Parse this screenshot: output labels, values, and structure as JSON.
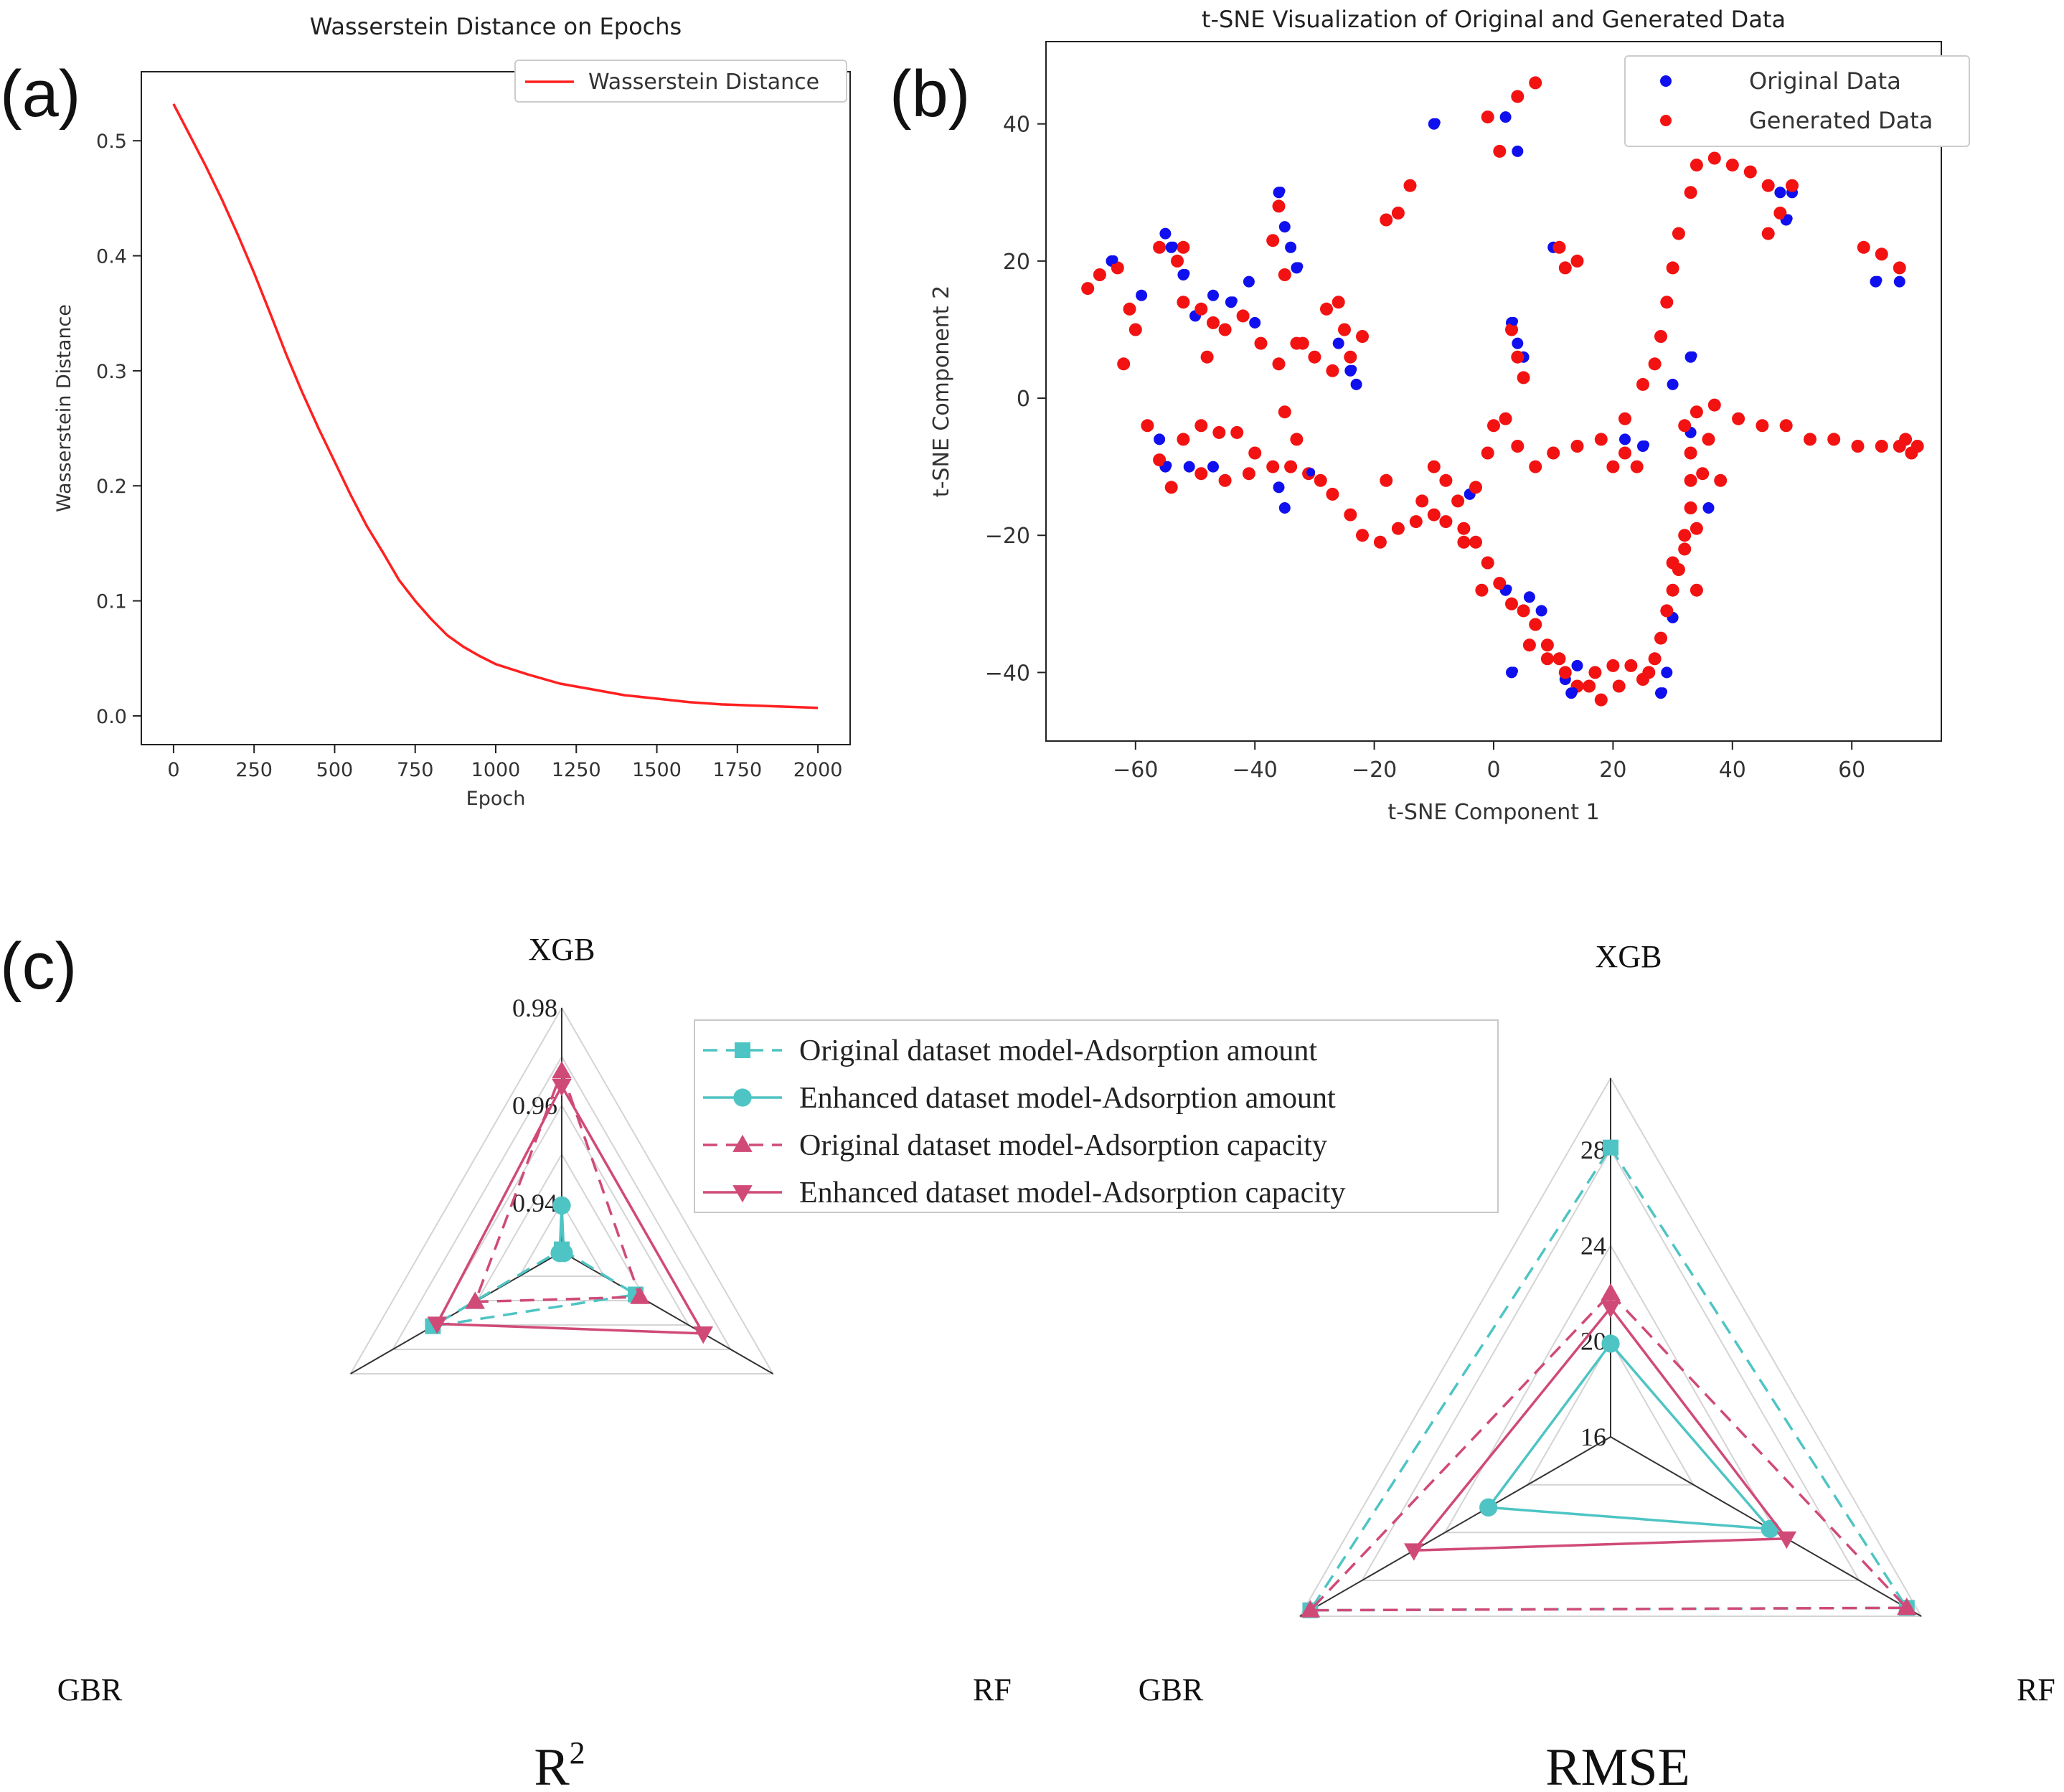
{
  "panels": {
    "a": "(a)",
    "b": "(b)",
    "c": "(c)"
  },
  "chart_data": [
    {
      "id": "a",
      "type": "line",
      "title": "Wasserstein Distance on Epochs",
      "xlabel": "Epoch",
      "ylabel": "Wasserstein Distance",
      "xlim": [
        -100,
        2100
      ],
      "ylim": [
        -0.025,
        0.56
      ],
      "xticks": [
        0,
        250,
        500,
        750,
        1000,
        1250,
        1500,
        1750,
        2000
      ],
      "xtick_labels": [
        "0",
        "250",
        "500",
        "750",
        "1000",
        "1250",
        "1500",
        "1750",
        "2000"
      ],
      "yticks": [
        0.0,
        0.1,
        0.2,
        0.3,
        0.4,
        0.5
      ],
      "ytick_labels": [
        "0.0",
        "0.1",
        "0.2",
        "0.3",
        "0.4",
        "0.5"
      ],
      "legend_position": "top-right",
      "grid": false,
      "series": [
        {
          "name": "Wasserstein Distance",
          "color": "#ff2020",
          "x": [
            0,
            50,
            100,
            150,
            200,
            250,
            300,
            350,
            400,
            450,
            500,
            550,
            600,
            650,
            700,
            750,
            800,
            850,
            900,
            950,
            1000,
            1100,
            1200,
            1300,
            1400,
            1500,
            1600,
            1700,
            1800,
            1900,
            2000
          ],
          "y": [
            0.532,
            0.505,
            0.478,
            0.449,
            0.418,
            0.385,
            0.35,
            0.314,
            0.281,
            0.25,
            0.221,
            0.192,
            0.165,
            0.142,
            0.118,
            0.1,
            0.084,
            0.07,
            0.06,
            0.052,
            0.045,
            0.036,
            0.028,
            0.023,
            0.018,
            0.015,
            0.012,
            0.01,
            0.009,
            0.008,
            0.007
          ]
        }
      ]
    },
    {
      "id": "b",
      "type": "scatter",
      "title": "t-SNE Visualization of Original and Generated Data",
      "xlabel": "t-SNE Component 1",
      "ylabel": "t-SNE Component 2",
      "xlim": [
        -75,
        75
      ],
      "ylim": [
        -50,
        52
      ],
      "xticks": [
        -60,
        -40,
        -20,
        0,
        20,
        40,
        60
      ],
      "xtick_labels": [
        "−60",
        "−40",
        "−20",
        "0",
        "20",
        "40",
        "60"
      ],
      "yticks": [
        -40,
        -20,
        0,
        20,
        40
      ],
      "ytick_labels": [
        "−40",
        "−20",
        "0",
        "20",
        "40"
      ],
      "legend_position": "top-right",
      "grid": false,
      "series": [
        {
          "name": "Original Data",
          "color": "#1010ee",
          "points": [
            [
              -64,
              20
            ],
            [
              -59,
              15
            ],
            [
              -55,
              24
            ],
            [
              -54,
              22
            ],
            [
              -58,
              -4
            ],
            [
              -56,
              -6
            ],
            [
              -55,
              -10
            ],
            [
              -51,
              -10
            ],
            [
              -47,
              -10
            ],
            [
              -52,
              18
            ],
            [
              -50,
              12
            ],
            [
              -47,
              15
            ],
            [
              -44,
              14
            ],
            [
              -41,
              17
            ],
            [
              -40,
              11
            ],
            [
              -36,
              30
            ],
            [
              -35,
              25
            ],
            [
              -34,
              22
            ],
            [
              -33,
              19
            ],
            [
              -36,
              -13
            ],
            [
              -35,
              -16
            ],
            [
              -31,
              -11
            ],
            [
              -26,
              8
            ],
            [
              -24,
              6
            ],
            [
              -24,
              4
            ],
            [
              -23,
              2
            ],
            [
              -4,
              -14
            ],
            [
              -10,
              40
            ],
            [
              2,
              41
            ],
            [
              4,
              36
            ],
            [
              3,
              11
            ],
            [
              4,
              8
            ],
            [
              5,
              6
            ],
            [
              2,
              -28
            ],
            [
              6,
              -29
            ],
            [
              8,
              -31
            ],
            [
              3,
              -40
            ],
            [
              12,
              -41
            ],
            [
              14,
              -39
            ],
            [
              13,
              -43
            ],
            [
              10,
              22
            ],
            [
              22,
              -6
            ],
            [
              25,
              -7
            ],
            [
              27,
              -38
            ],
            [
              29,
              -40
            ],
            [
              28,
              -43
            ],
            [
              30,
              -32
            ],
            [
              36,
              -16
            ],
            [
              33,
              6
            ],
            [
              33,
              -5
            ],
            [
              50,
              30
            ],
            [
              49,
              26
            ],
            [
              48,
              30
            ],
            [
              68,
              17
            ],
            [
              64,
              17
            ],
            [
              30,
              2
            ]
          ]
        },
        {
          "name": "Generated Data",
          "color": "#f21212",
          "points": [
            [
              -68,
              16
            ],
            [
              -66,
              18
            ],
            [
              -63,
              19
            ],
            [
              -61,
              13
            ],
            [
              -60,
              10
            ],
            [
              -62,
              5
            ],
            [
              -56,
              22
            ],
            [
              -53,
              20
            ],
            [
              -52,
              14
            ],
            [
              -49,
              13
            ],
            [
              -47,
              11
            ],
            [
              -45,
              10
            ],
            [
              -42,
              12
            ],
            [
              -39,
              8
            ],
            [
              -36,
              5
            ],
            [
              -33,
              8
            ],
            [
              -30,
              6
            ],
            [
              -27,
              4
            ],
            [
              -24,
              6
            ],
            [
              -22,
              9
            ],
            [
              -58,
              -4
            ],
            [
              -56,
              -9
            ],
            [
              -54,
              -13
            ],
            [
              -49,
              -4
            ],
            [
              -46,
              -5
            ],
            [
              -43,
              -5
            ],
            [
              -40,
              -8
            ],
            [
              -37,
              -10
            ],
            [
              -34,
              -10
            ],
            [
              -31,
              -11
            ],
            [
              -29,
              -12
            ],
            [
              -27,
              -14
            ],
            [
              -24,
              -17
            ],
            [
              -22,
              -20
            ],
            [
              -19,
              -21
            ],
            [
              -16,
              -19
            ],
            [
              -13,
              -18
            ],
            [
              -10,
              -17
            ],
            [
              -8,
              -18
            ],
            [
              -5,
              -19
            ],
            [
              -3,
              -21
            ],
            [
              -1,
              -24
            ],
            [
              1,
              -27
            ],
            [
              3,
              -30
            ],
            [
              5,
              -31
            ],
            [
              7,
              -33
            ],
            [
              9,
              -36
            ],
            [
              11,
              -38
            ],
            [
              12,
              -40
            ],
            [
              14,
              -42
            ],
            [
              17,
              -40
            ],
            [
              20,
              -39
            ],
            [
              23,
              -39
            ],
            [
              25,
              -41
            ],
            [
              27,
              -38
            ],
            [
              28,
              -35
            ],
            [
              29,
              -31
            ],
            [
              30,
              -28
            ],
            [
              31,
              -25
            ],
            [
              32,
              -22
            ],
            [
              34,
              -19
            ],
            [
              33,
              -16
            ],
            [
              33,
              -12
            ],
            [
              33,
              -8
            ],
            [
              32,
              -4
            ],
            [
              34,
              -2
            ],
            [
              37,
              -1
            ],
            [
              41,
              -3
            ],
            [
              45,
              -4
            ],
            [
              49,
              -4
            ],
            [
              53,
              -6
            ],
            [
              57,
              -6
            ],
            [
              61,
              -7
            ],
            [
              65,
              -7
            ],
            [
              68,
              -7
            ],
            [
              70,
              -8
            ],
            [
              71,
              -7
            ],
            [
              69,
              -6
            ],
            [
              34,
              34
            ],
            [
              37,
              35
            ],
            [
              40,
              34
            ],
            [
              43,
              33
            ],
            [
              46,
              31
            ],
            [
              50,
              31
            ],
            [
              48,
              27
            ],
            [
              46,
              24
            ],
            [
              33,
              30
            ],
            [
              31,
              24
            ],
            [
              30,
              19
            ],
            [
              29,
              14
            ],
            [
              28,
              9
            ],
            [
              27,
              5
            ],
            [
              25,
              2
            ],
            [
              22,
              -3
            ],
            [
              18,
              -6
            ],
            [
              14,
              -7
            ],
            [
              10,
              -8
            ],
            [
              7,
              -10
            ],
            [
              4,
              -7
            ],
            [
              2,
              -3
            ],
            [
              0,
              -4
            ],
            [
              -1,
              -8
            ],
            [
              -10,
              -10
            ],
            [
              -18,
              -12
            ],
            [
              -33,
              -6
            ],
            [
              -35,
              -2
            ],
            [
              5,
              3
            ],
            [
              4,
              6
            ],
            [
              3,
              10
            ],
            [
              1,
              36
            ],
            [
              4,
              44
            ],
            [
              7,
              46
            ],
            [
              -1,
              41
            ],
            [
              -16,
              27
            ],
            [
              -14,
              31
            ],
            [
              -18,
              26
            ],
            [
              -36,
              28
            ],
            [
              -37,
              23
            ],
            [
              -35,
              18
            ],
            [
              -25,
              10
            ],
            [
              -26,
              14
            ],
            [
              -28,
              13
            ],
            [
              -32,
              8
            ],
            [
              -52,
              22
            ],
            [
              -48,
              6
            ],
            [
              -52,
              -6
            ],
            [
              -49,
              -11
            ],
            [
              -45,
              -12
            ],
            [
              -41,
              -11
            ],
            [
              62,
              22
            ],
            [
              65,
              21
            ],
            [
              68,
              19
            ],
            [
              11,
              22
            ],
            [
              12,
              19
            ],
            [
              14,
              20
            ],
            [
              24,
              -10
            ],
            [
              22,
              -8
            ],
            [
              20,
              -10
            ],
            [
              26,
              -40
            ],
            [
              21,
              -42
            ],
            [
              18,
              -44
            ],
            [
              16,
              -42
            ],
            [
              -6,
              -15
            ],
            [
              -8,
              -12
            ],
            [
              -3,
              -13
            ],
            [
              -12,
              -15
            ],
            [
              -5,
              -21
            ],
            [
              -2,
              -28
            ],
            [
              6,
              -36
            ],
            [
              9,
              -38
            ],
            [
              35,
              -11
            ],
            [
              36,
              -6
            ],
            [
              32,
              -20
            ],
            [
              30,
              -24
            ],
            [
              34,
              -28
            ],
            [
              38,
              -12
            ]
          ]
        }
      ]
    },
    {
      "id": "c-r2",
      "type": "radar",
      "title": "R²",
      "title_main": "R",
      "title_sup": "2",
      "axes": [
        "XGB",
        "RF",
        "GBR"
      ],
      "r_range": [
        0.93,
        0.98
      ],
      "ticks": [
        0.94,
        0.96,
        0.98
      ],
      "tick_labels": [
        "0.94",
        "0.96",
        "0.98"
      ],
      "series": [
        {
          "name": "Original dataset model-Adsorption amount",
          "color": "#4fc4c4",
          "dashed": true,
          "marker": "square",
          "values": [
            0.9305,
            0.9475,
            0.9605
          ]
        },
        {
          "name": "Enhanced dataset model-Adsorption amount",
          "color": "#4fc4c4",
          "dashed": false,
          "marker": "circle",
          "values": [
            0.9395,
            0.9305,
            0.9305
          ]
        },
        {
          "name": "Original dataset model-Adsorption capacity",
          "color": "#d04a78",
          "dashed": true,
          "marker": "triangle-up",
          "values": [
            0.967,
            0.9485,
            0.9505
          ]
        },
        {
          "name": "Enhanced dataset model-Adsorption capacity",
          "color": "#d04a78",
          "dashed": false,
          "marker": "triangle-down",
          "values": [
            0.964,
            0.9635,
            0.9595
          ]
        }
      ]
    },
    {
      "id": "c-rmse",
      "type": "radar",
      "title": "RMSE",
      "axes": [
        "XGB",
        "RF",
        "GBR"
      ],
      "r_range": [
        16,
        28
      ],
      "ticks": [
        16,
        20,
        24,
        28
      ],
      "tick_labels": [
        "16",
        "20",
        "24",
        "28"
      ],
      "series": [
        {
          "name": "Original dataset model-Adsorption amount",
          "color": "#4fc4c4",
          "dashed": true,
          "marker": "square",
          "values": [
            28.1,
            30.3,
            30.5
          ]
        },
        {
          "name": "Enhanced dataset model-Adsorption amount",
          "color": "#4fc4c4",
          "dashed": false,
          "marker": "circle",
          "values": [
            19.9,
            23.7,
            21.9
          ]
        },
        {
          "name": "Original dataset model-Adsorption capacity",
          "color": "#d04a78",
          "dashed": true,
          "marker": "triangle-up",
          "values": [
            22.0,
            30.3,
            30.5
          ]
        },
        {
          "name": "Enhanced dataset model-Adsorption capacity",
          "color": "#d04a78",
          "dashed": false,
          "marker": "triangle-down",
          "values": [
            21.4,
            24.5,
            25.5
          ]
        }
      ]
    }
  ]
}
